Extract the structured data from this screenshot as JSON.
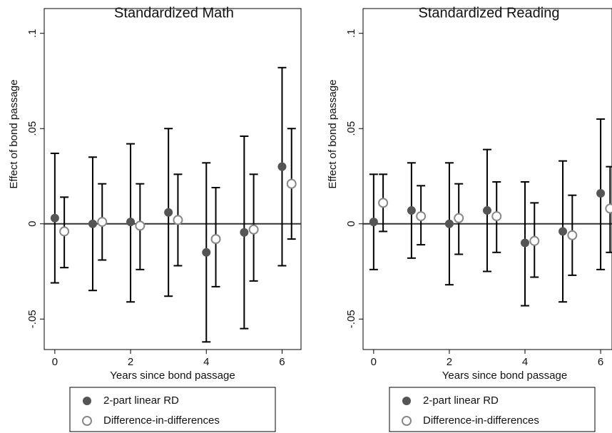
{
  "chart_data": [
    {
      "type": "errorbar",
      "title": "Standardized Math",
      "x_label": "Years since bond passage",
      "y_label": "Effect of bond passage",
      "xlim": [
        -0.28,
        6.5
      ],
      "ylim": [
        -0.066,
        0.113
      ],
      "xticks": [
        0,
        2,
        4,
        6
      ],
      "yticks": [
        {
          "value": -0.05,
          "label": "-.05"
        },
        0,
        {
          "value": 0.05,
          "label": ".05"
        },
        {
          "value": 0.1,
          "label": ".1"
        }
      ],
      "hline": 0,
      "grid": false,
      "series": [
        {
          "name": "2-part linear RD",
          "color": "#555555",
          "marker": "filled",
          "x": [
            0,
            1,
            2,
            3,
            4,
            5,
            6
          ],
          "values": [
            0.003,
            0,
            0.001,
            0.006,
            -0.015,
            -0.0045,
            0.03
          ],
          "lower": [
            -0.031,
            -0.035,
            -0.041,
            -0.038,
            -0.062,
            -0.055,
            -0.022
          ],
          "upper": [
            0.037,
            0.035,
            0.042,
            0.05,
            0.032,
            0.046,
            0.082
          ]
        },
        {
          "name": "Difference-in-differences",
          "color": "#888888",
          "marker": "hollow",
          "x": [
            0.25,
            1.25,
            2.25,
            3.25,
            4.25,
            5.25,
            6.25
          ],
          "values": [
            -0.004,
            0.001,
            -0.001,
            0.002,
            -0.008,
            -0.003,
            0.021
          ],
          "lower": [
            -0.023,
            -0.019,
            -0.024,
            -0.022,
            -0.033,
            -0.03,
            -0.008
          ],
          "upper": [
            0.014,
            0.021,
            0.021,
            0.026,
            0.019,
            0.026,
            0.05
          ]
        }
      ]
    },
    {
      "type": "errorbar",
      "title": "Standardized Reading",
      "x_label": "Years since bond passage",
      "y_label": "Effect of bond passage",
      "xlim": [
        -0.28,
        6.3
      ],
      "ylim": [
        -0.066,
        0.113
      ],
      "xticks": [
        0,
        2,
        4,
        6
      ],
      "yticks": [
        {
          "value": -0.05,
          "label": "-.05"
        },
        0,
        {
          "value": 0.05,
          "label": ".05"
        },
        {
          "value": 0.1,
          "label": ".1"
        }
      ],
      "hline": 0,
      "grid": false,
      "series": [
        {
          "name": "2-part linear RD",
          "color": "#555555",
          "marker": "filled",
          "x": [
            0,
            1,
            2,
            3,
            4,
            5,
            6
          ],
          "values": [
            0.001,
            0.007,
            0,
            0.007,
            -0.01,
            -0.004,
            0.016
          ],
          "lower": [
            -0.024,
            -0.018,
            -0.032,
            -0.025,
            -0.043,
            -0.041,
            -0.024
          ],
          "upper": [
            0.026,
            0.032,
            0.032,
            0.039,
            0.022,
            0.033,
            0.055
          ]
        },
        {
          "name": "Difference-in-differences",
          "color": "#888888",
          "marker": "hollow",
          "x": [
            0.25,
            1.25,
            2.25,
            3.25,
            4.25,
            5.25,
            6.25
          ],
          "values": [
            0.011,
            0.004,
            0.003,
            0.004,
            -0.009,
            -0.006,
            0.008
          ],
          "lower": [
            -0.004,
            -0.011,
            -0.016,
            -0.015,
            -0.028,
            -0.027,
            -0.015
          ],
          "upper": [
            0.026,
            0.02,
            0.021,
            0.022,
            0.011,
            0.015,
            0.03
          ]
        }
      ]
    }
  ]
}
